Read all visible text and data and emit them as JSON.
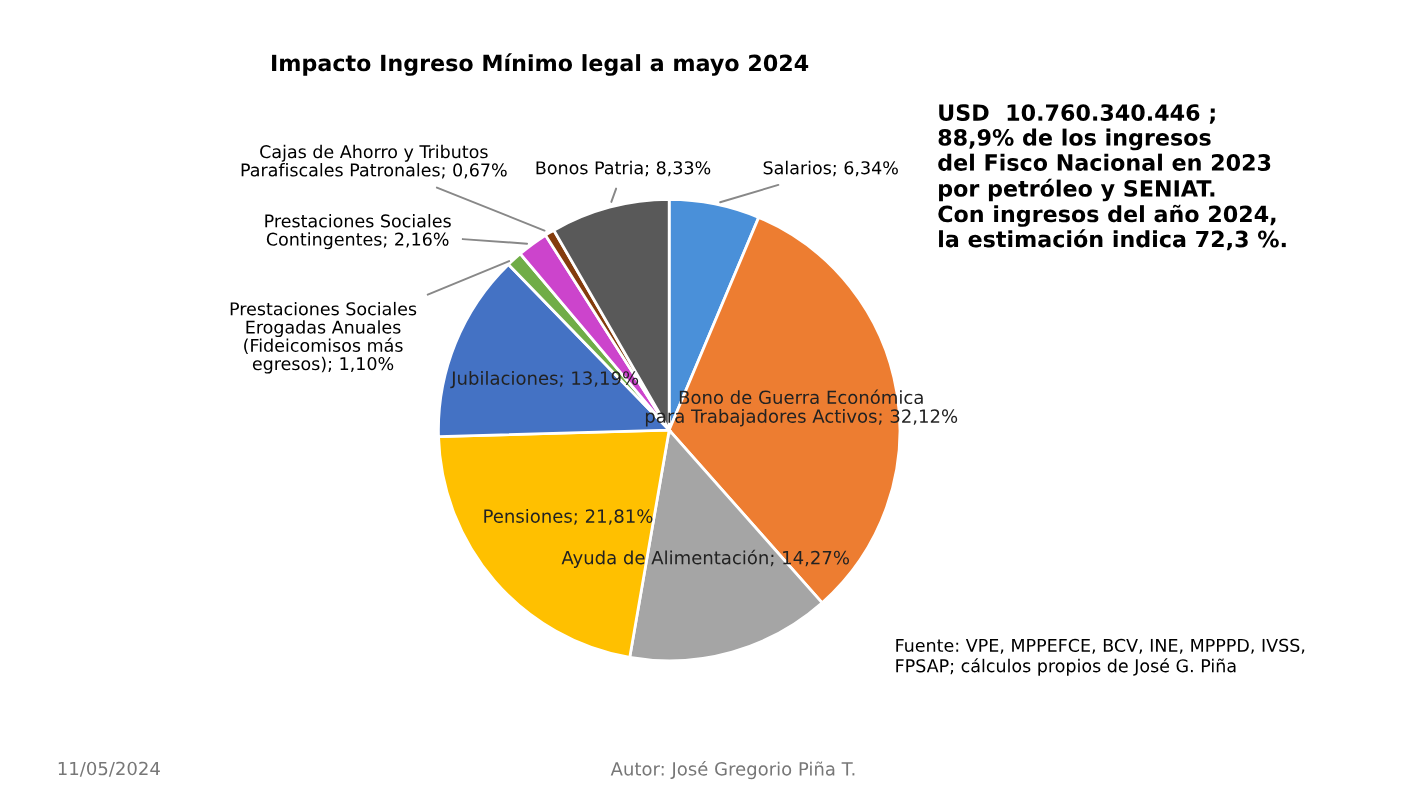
{
  "chart_data": {
    "type": "pie",
    "title": "Impacto Ingreso Mínimo legal a mayo 2024",
    "categories": [
      "Salarios",
      "Bono de Guerra Económica\npara Trabajadores Activos",
      "Ayuda de Alimentación",
      "Pensiones",
      "Jubilaciones",
      "Prestaciones Sociales\nErogadas Anuales\n(Fideicomisos más\negresos)",
      "Prestaciones Sociales\nContingentes",
      "Cajas de Ahorro y Tributos\nParafiscales Patronales",
      "Bonos Patria"
    ],
    "values": [
      6.34,
      32.12,
      14.27,
      21.81,
      13.19,
      1.1,
      2.16,
      0.67,
      8.33
    ],
    "value_labels": [
      "6,34%",
      "32,12%",
      "14,27%",
      "21,81%",
      "13,19%",
      "1,10%",
      "2,16%",
      "0,67%",
      "8,33%"
    ],
    "colors": [
      "#4a90d9",
      "#ed7d31",
      "#a5a5a5",
      "#ffc000",
      "#4472c4",
      "#70ad47",
      "#cc44cc",
      "#843c0c",
      "#595959"
    ],
    "annotations": [
      "USD  10.760.340.446 ;\n88,9% de los ingresos\ndel Fisco Nacional en 2023\npor petróleo y SENIAT.\nCon ingresos del año 2024,\nla estimación indica 72,3 %.",
      "Fuente: VPE, MPPEFCE, BCV, INE, MPPPD, IVSS,\nFPSAP; cálculos propios de José G. Piña",
      "11/05/2024",
      "Autor: José Gregorio Piña T."
    ],
    "legend": false
  }
}
